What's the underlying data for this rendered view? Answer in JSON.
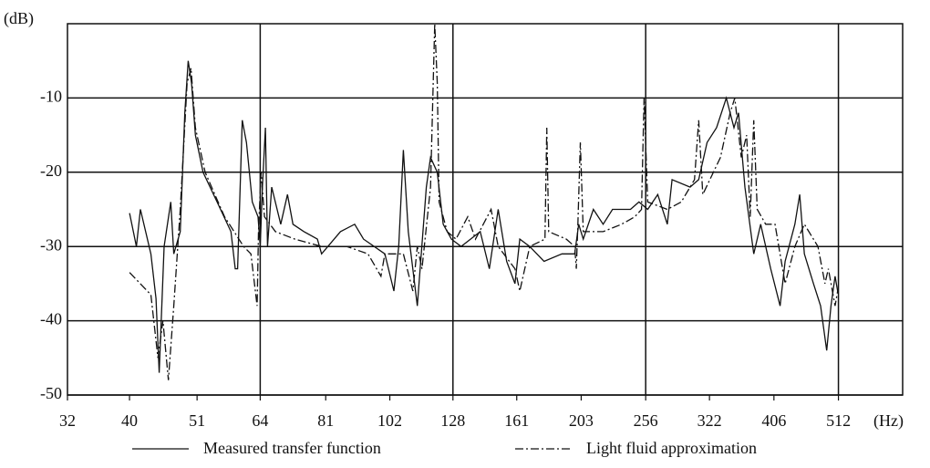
{
  "chart_data": {
    "type": "line",
    "y_label": "(dB)",
    "x_label": "(Hz)",
    "log_x": true,
    "xlim": [
      32,
      645
    ],
    "xticks": [
      32,
      40,
      51,
      64,
      81,
      102,
      128,
      161,
      203,
      256,
      322,
      406,
      512
    ],
    "ylim": [
      -50,
      0
    ],
    "yticks": [
      -50,
      -40,
      -30,
      -20,
      -10
    ],
    "grid": true,
    "x_grid": [
      64,
      128,
      256,
      512
    ],
    "legend": "bottom",
    "series": [
      {
        "name": "Measured transfer function",
        "color": "#111111",
        "style": "solid",
        "x": [
          40,
          41,
          41.6,
          43.2,
          44,
          44.5,
          45.3,
          46.4,
          46.9,
          48,
          48.8,
          49.4,
          50,
          50.7,
          52.1,
          54.8,
          57.6,
          58.5,
          59,
          60,
          60.9,
          62.2,
          63.5,
          64,
          64.5,
          65.2,
          65.7,
          66.7,
          68.9,
          70.6,
          72,
          74.9,
          78.6,
          79.8,
          85.4,
          89.9,
          92.8,
          100.2,
          103.5,
          105.3,
          107.1,
          109,
          112.6,
          116.3,
          118.1,
          121,
          123.6,
          127.3,
          131.8,
          141.2,
          145.9,
          150.6,
          155.3,
          160,
          162.8,
          168.7,
          177.6,
          189.4,
          198.3,
          201.2,
          204.5,
          212.1,
          219.7,
          227.2,
          242.4,
          249.9,
          257.9,
          267.3,
          276.7,
          281.5,
          300.3,
          309.7,
          319.2,
          330.3,
          342.1,
          351.6,
          357.5,
          365.8,
          377.6,
          387.1,
          401.3,
          415.1,
          422.7,
          437.8,
          445.4,
          452.9,
          468.1,
          480.2,
          490.8,
          498.4,
          505.9,
          510.5
        ],
        "values": [
          -25.5,
          -30,
          -25,
          -31,
          -37,
          -47,
          -30,
          -24,
          -31,
          -28,
          -12,
          -5,
          -8,
          -15,
          -20,
          -24,
          -28,
          -33,
          -33,
          -13,
          -16,
          -24,
          -26,
          -30,
          -22,
          -14,
          -30,
          -22,
          -27,
          -23,
          -27,
          -28,
          -29,
          -31,
          -28,
          -27,
          -29,
          -31,
          -36,
          -30,
          -17,
          -28,
          -38,
          -22,
          -18,
          -20,
          -27,
          -29,
          -30,
          -28,
          -33,
          -25,
          -32,
          -35,
          -29,
          -30,
          -32,
          -31,
          -31,
          -27,
          -29,
          -25,
          -27,
          -25,
          -25,
          -24,
          -25,
          -23,
          -27,
          -21,
          -22,
          -21,
          -16,
          -14,
          -10,
          -14,
          -12,
          -22,
          -31,
          -27,
          -33,
          -38,
          -32,
          -27,
          -23,
          -31,
          -35,
          -38,
          -44,
          -38,
          -34,
          -36
        ]
      },
      {
        "name": "Light fluid approximation",
        "color": "#111111",
        "style": "dashdot",
        "x": [
          40,
          43.2,
          44.3,
          45.1,
          46,
          46.9,
          48,
          49.2,
          49.9,
          50.7,
          52.5,
          56.3,
          60.3,
          61.9,
          63.3,
          63.6,
          64.2,
          65,
          67.6,
          72.5,
          79.8,
          87.4,
          94.3,
          98.8,
          100.2,
          107.1,
          110.8,
          112.6,
          114.5,
          118.1,
          119.9,
          121,
          121.8,
          125.4,
          129.4,
          135,
          138.8,
          146.8,
          150.6,
          160,
          162.8,
          168.7,
          178.2,
          179.4,
          180.6,
          192.4,
          198.3,
          199.5,
          200.6,
          202.4,
          204.5,
          219.7,
          234.8,
          246.2,
          252.2,
          254.5,
          257.9,
          276.7,
          290.9,
          305.1,
          309.7,
          314.4,
          335,
          346.8,
          352.7,
          361,
          368.1,
          372.8,
          377.6,
          382.3,
          394.2,
          407.5,
          422.7,
          437.8,
          452.9,
          475.7,
          487.8,
          493.8,
          505.9,
          510.5
        ],
        "values": [
          -33.5,
          -36.5,
          -45,
          -40,
          -48,
          -38,
          -25,
          -8,
          -6,
          -14,
          -20,
          -26,
          -30,
          -31,
          -38,
          -28,
          -20,
          -26,
          -28,
          -29,
          -30,
          -30,
          -31,
          -34,
          -31,
          -31,
          -36,
          -30,
          -33,
          -22,
          0,
          -8,
          -24,
          -28,
          -29,
          -26,
          -29,
          -25,
          -30,
          -33,
          -36,
          -30,
          -29,
          -14,
          -28,
          -29,
          -30,
          -33,
          -27,
          -16,
          -28,
          -28,
          -27,
          -26,
          -25,
          -10,
          -24,
          -25,
          -24,
          -21,
          -13,
          -23,
          -18,
          -12,
          -10,
          -18,
          -15,
          -26,
          -13,
          -25,
          -27,
          -27,
          -35,
          -30,
          -27,
          -30,
          -35,
          -33,
          -38,
          -36
        ]
      }
    ]
  }
}
